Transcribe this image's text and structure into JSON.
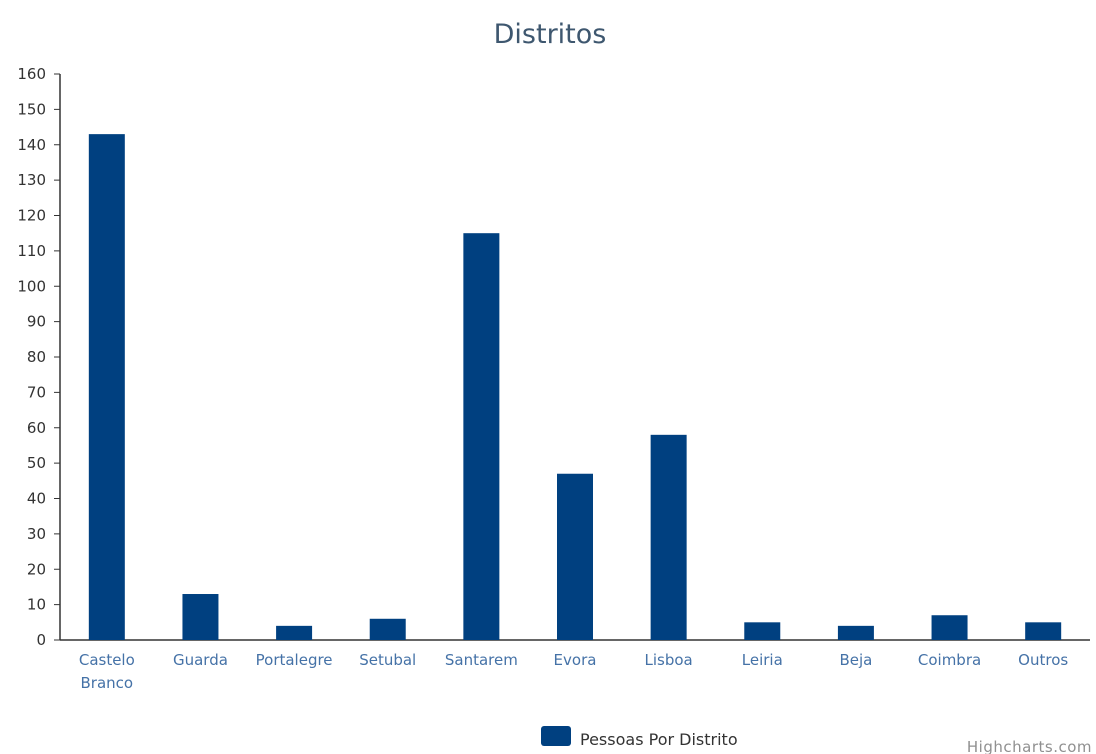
{
  "chart_data": {
    "type": "bar",
    "title": "Distritos",
    "xlabel": "",
    "ylabel": "",
    "categories": [
      [
        "Castelo",
        "Branco"
      ],
      [
        "Guarda"
      ],
      [
        "Portalegre"
      ],
      [
        "Setubal"
      ],
      [
        "Santarem"
      ],
      [
        "Evora"
      ],
      [
        "Lisboa"
      ],
      [
        "Leiria"
      ],
      [
        "Beja"
      ],
      [
        "Coimbra"
      ],
      [
        "Outros"
      ]
    ],
    "series": [
      {
        "name": "Pessoas Por Distrito",
        "color": "#004080",
        "values": [
          143,
          13,
          4,
          6,
          115,
          47,
          58,
          5,
          4,
          7,
          5
        ]
      }
    ],
    "ylim": [
      0,
      160
    ],
    "yticks": [
      "0",
      "10",
      "20",
      "30",
      "40",
      "50",
      "60",
      "70",
      "80",
      "90",
      "100",
      "110",
      "120",
      "130",
      "140",
      "150",
      "160"
    ],
    "grid": false,
    "legend": "bottom-center",
    "credit": "Highcharts.com"
  }
}
